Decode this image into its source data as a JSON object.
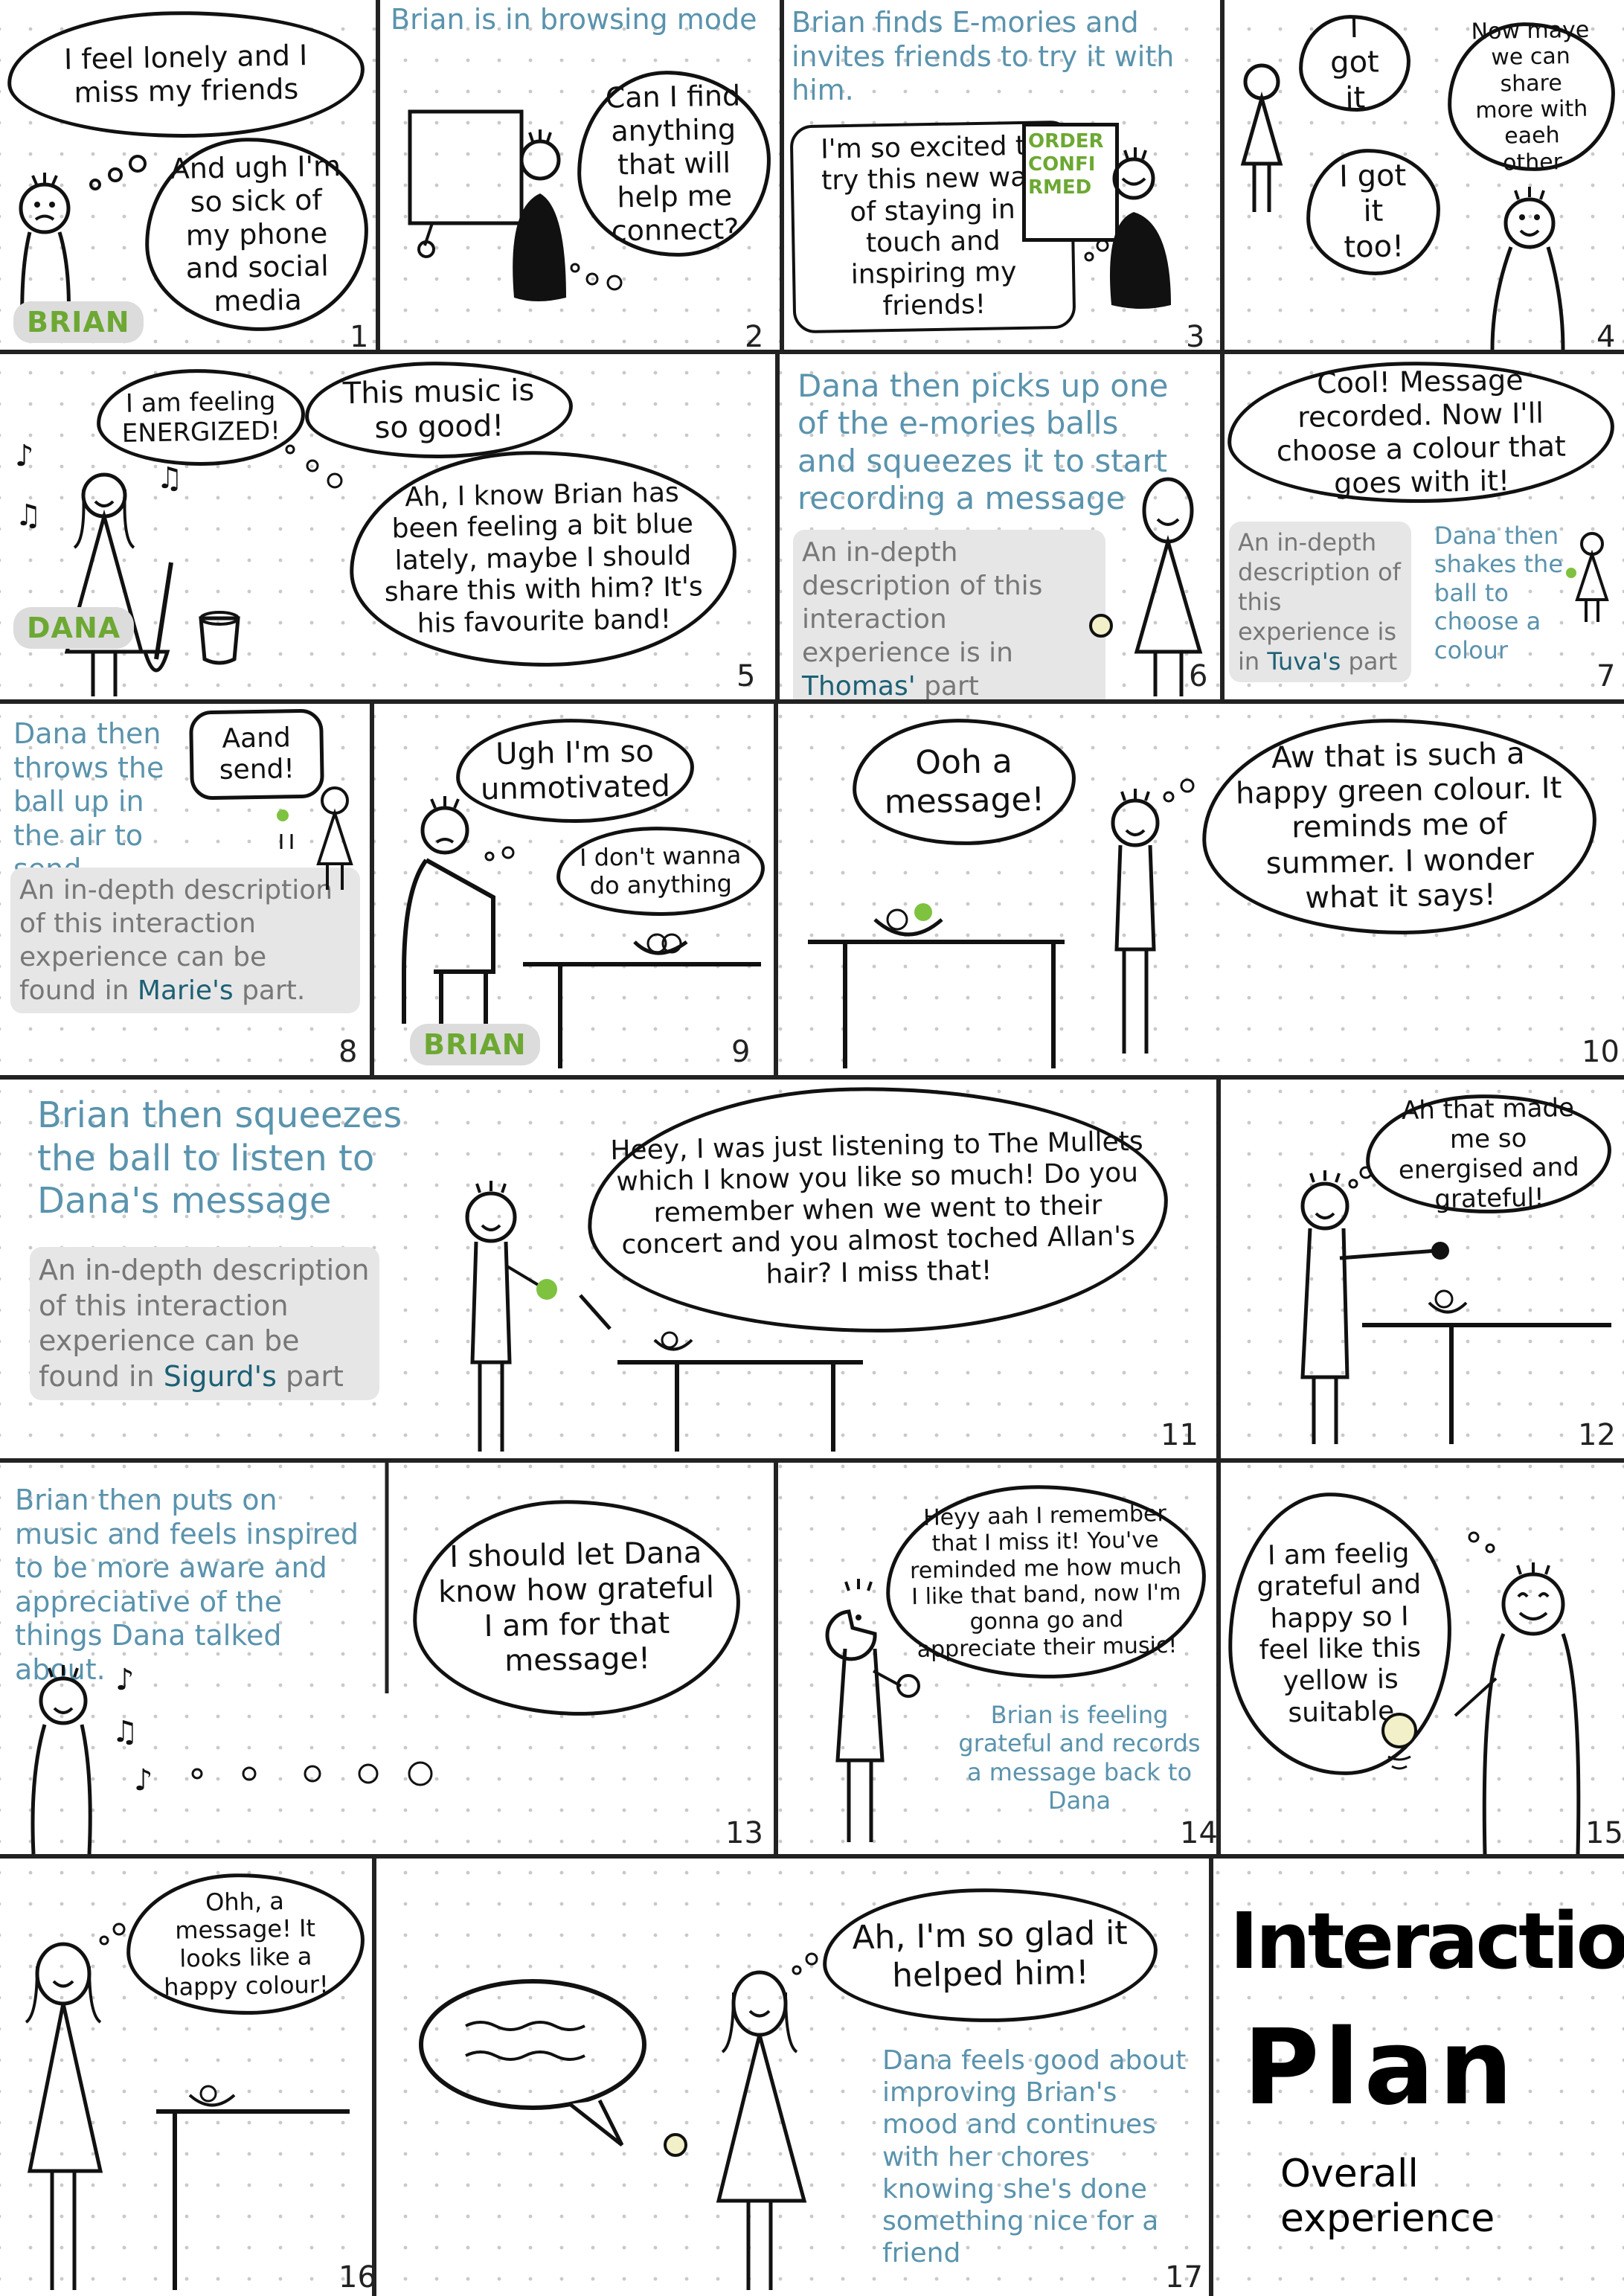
{
  "title": {
    "line1": "Interaction",
    "line2": "Plan",
    "sub": "Overall experience"
  },
  "names": {
    "brian": "BRIAN",
    "dana": "DANA"
  },
  "colors": {
    "caption": "#5a93ad",
    "highlight": "#1c6074",
    "green": "#6da833",
    "ball": "#7ec23f",
    "ball_yellow": "#f2f0c8"
  },
  "panels": [
    {
      "n": "1",
      "bubbles": [
        "I feel lonely and I miss my friends",
        "And ugh I'm so sick of my phone and social media"
      ],
      "tag": "BRIAN"
    },
    {
      "n": "2",
      "caption": "Brian is in browsing mode",
      "bubbles": [
        "Can I find anything that will help me connect?"
      ]
    },
    {
      "n": "3",
      "caption": "Brian finds E-mories and invites friends to try it with him.",
      "bubbles": [
        "I'm so excited to try this new way of staying in touch and inspiring my friends!"
      ],
      "screen": "ORDER CONFI RMED"
    },
    {
      "n": "4",
      "bubbles": [
        "I got it",
        "Now maye we can share more with eaeh other",
        "I got it too!"
      ]
    },
    {
      "n": "5",
      "bubbles": [
        "I am feeling ENERGIZED!",
        "This music is so good!",
        "Ah, I know Brian has been feeling a bit blue lately, maybe I should share this with him? It's his favourite band!"
      ],
      "tag": "DANA"
    },
    {
      "n": "6",
      "caption": "Dana then picks up one of the e-mories balls and squeezes it to start recording a message",
      "gray": {
        "pre": "An in-depth description of this interaction experience is in ",
        "who": "Thomas'",
        "post": " part"
      }
    },
    {
      "n": "7",
      "bubbles": [
        "Cool! Message recorded. Now I'll choose a colour that goes with it!"
      ],
      "caption": "Dana then shakes the ball to choose a colour",
      "gray": {
        "pre": "An in-depth description of this experience is in ",
        "who": "Tuva's",
        "post": " part"
      }
    },
    {
      "n": "8",
      "caption": "Dana then throws the ball up in the air to send",
      "bubbles": [
        "Aand send!"
      ],
      "gray": {
        "pre": "An in-depth description of this interaction experience can be found in ",
        "who": "Marie's",
        "post": " part."
      }
    },
    {
      "n": "9",
      "bubbles": [
        "Ugh I'm so unmotivated",
        "I don't wanna do anything"
      ],
      "tag": "BRIAN"
    },
    {
      "n": "10",
      "bubbles": [
        "Ooh a message!",
        "Aw that is such a happy green colour. It reminds me of summer. I wonder what it says!"
      ]
    },
    {
      "n": "11",
      "caption": "Brian then squeezes the ball to listen to Dana's message",
      "gray": {
        "pre": "An in-depth description of this interaction experience can be found in ",
        "who": "Sigurd's",
        "post": " part"
      },
      "bubbles": [
        "Heey, I was just listening to The Mullets which I know you like so much! Do you remember when we went to their concert and you almost toched Allan's hair? I miss that!"
      ]
    },
    {
      "n": "12",
      "bubbles": [
        "Ah that made me so energised and grateful!"
      ]
    },
    {
      "n": "13",
      "caption": "Brian then puts on music and feels inspired to be more aware and appreciative of the things Dana talked about.",
      "bubbles": [
        "I should let Dana know how grateful I am for that message!"
      ]
    },
    {
      "n": "14",
      "bubbles": [
        "Heyy aah I remember that I miss it! You've reminded me how much I like that band, now I'm gonna go and appreciate their music!"
      ],
      "caption": "Brian is feeling grateful and records a message back to Dana"
    },
    {
      "n": "15",
      "bubbles": [
        "I am feelig grateful and happy so I feel like this yellow is suitable"
      ]
    },
    {
      "n": "16",
      "bubbles": [
        "Ohh, a message! It looks like a happy colour!"
      ]
    },
    {
      "n": "17",
      "bubbles": [
        "Ah, I'm so glad it helped him!"
      ],
      "caption": "Dana feels good about improving Brian's mood and continues with her chores knowing she's done something nice for a friend"
    }
  ]
}
